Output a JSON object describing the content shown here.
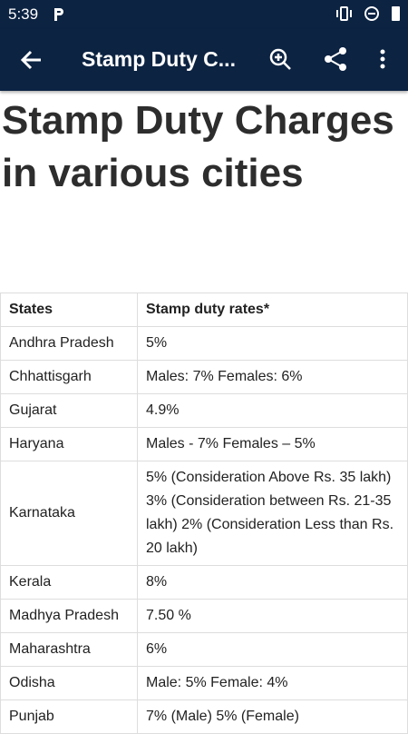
{
  "status_bar": {
    "time": "5:39"
  },
  "app_bar": {
    "title": "Stamp Duty C..."
  },
  "article": {
    "heading": "Stamp Duty Charges in various cities"
  },
  "table": {
    "header": [
      "States",
      "Stamp duty rates*"
    ],
    "rows": [
      [
        "Andhra Pradesh",
        "5%"
      ],
      [
        "Chhattisgarh",
        "Males: 7% Females: 6%"
      ],
      [
        "Gujarat",
        "4.9%"
      ],
      [
        "Haryana",
        "Males - 7% Females – 5%"
      ],
      [
        "Karnataka",
        "5% (Consideration Above Rs. 35 lakh) 3% (Consideration between Rs. 21-35 lakh) 2% (Consideration Less than Rs. 20 lakh)"
      ],
      [
        "Kerala",
        "8%"
      ],
      [
        "Madhya Pradesh",
        "7.50 %"
      ],
      [
        "Maharashtra",
        "6%"
      ],
      [
        "Odisha",
        "Male: 5% Female: 4%"
      ],
      [
        "Punjab",
        "7% (Male) 5% (Female)"
      ]
    ]
  }
}
